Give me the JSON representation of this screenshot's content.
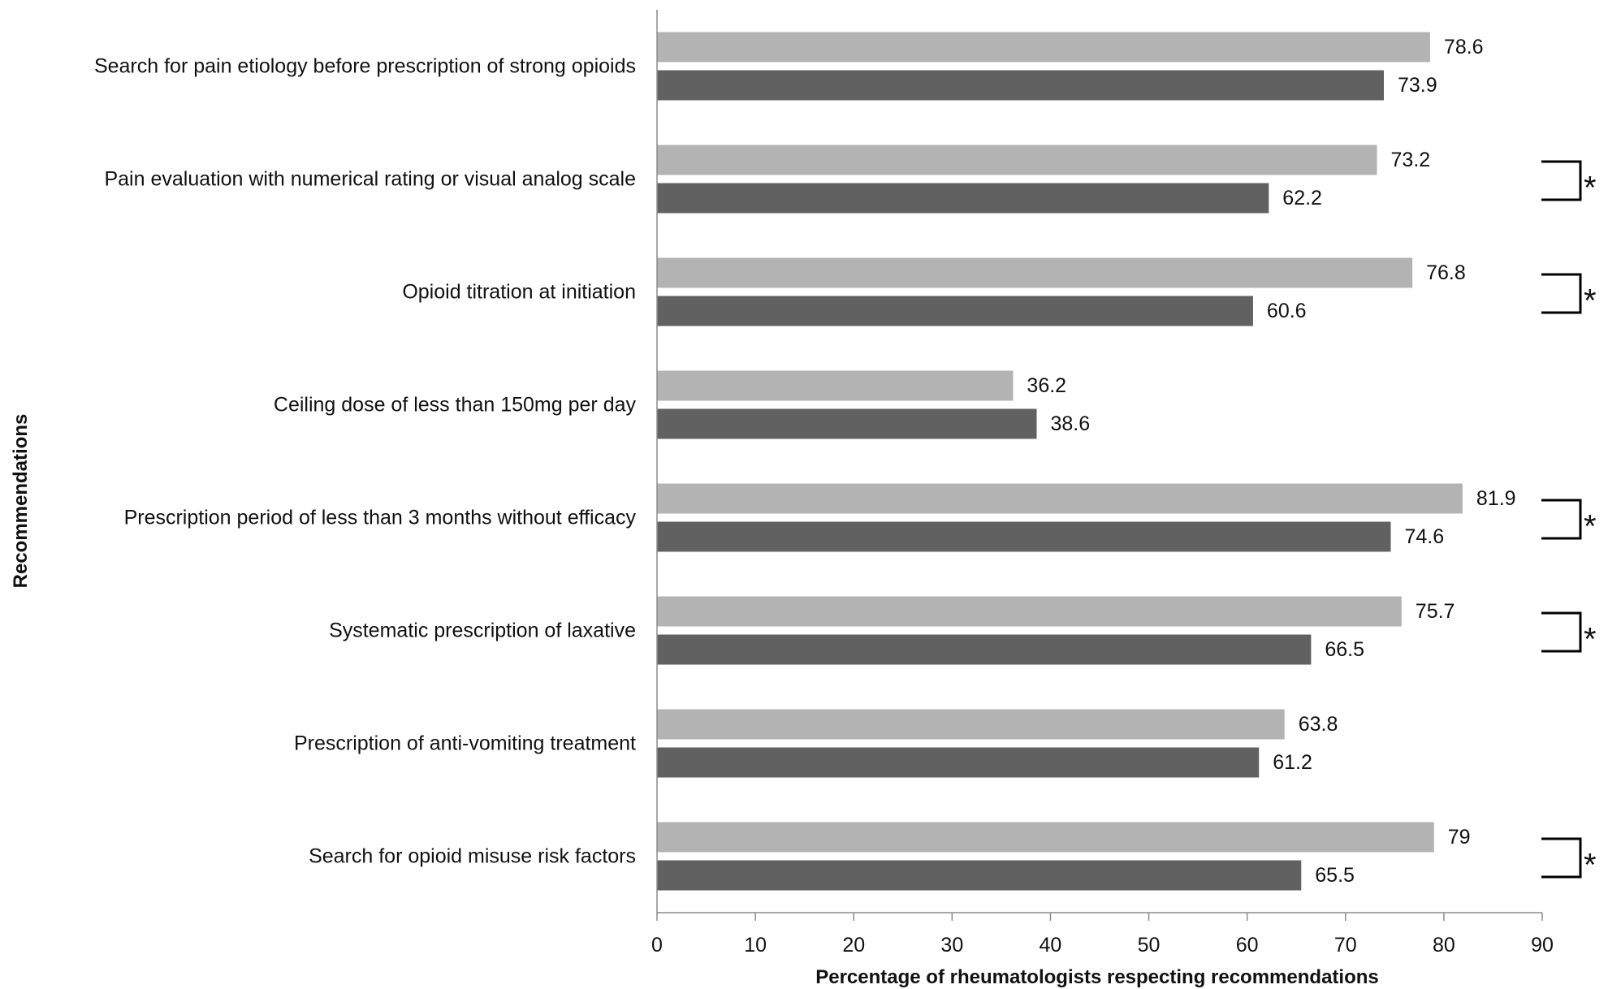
{
  "chart_data": {
    "type": "bar",
    "orientation": "horizontal",
    "title": "",
    "xlabel": "Percentage of rheumatologists respecting recommendations",
    "ylabel": "Recommendations",
    "xlim": [
      0,
      90
    ],
    "x_ticks": [
      0,
      10,
      20,
      30,
      40,
      50,
      60,
      70,
      80,
      90
    ],
    "grid": false,
    "legend": null,
    "categories": [
      "Search for pain etiology before prescription of strong opioids",
      "Pain evaluation with numerical rating or visual analog scale",
      "Opioid titration at initiation",
      "Ceiling dose of less than 150mg per day",
      "Prescription period of less than 3 months without efficacy",
      "Systematic prescription of laxative",
      "Prescription of anti-vomiting treatment",
      "Search for opioid misuse risk factors"
    ],
    "series": [
      {
        "color": "#b3b3b3",
        "values": [
          78.6,
          73.2,
          76.8,
          36.2,
          81.9,
          75.7,
          63.8,
          79
        ],
        "labels": [
          "78.6",
          "73.2",
          "76.8",
          "36.2",
          "81.9",
          "75.7",
          "63.8",
          "79"
        ]
      },
      {
        "color": "#616161",
        "values": [
          73.9,
          62.2,
          60.6,
          38.6,
          74.6,
          66.5,
          61.2,
          65.5
        ],
        "labels": [
          "73.9",
          "62.2",
          "60.6",
          "38.6",
          "74.6",
          "66.5",
          "61.2",
          "65.5"
        ]
      }
    ],
    "significance_marker": "*",
    "significant": [
      false,
      true,
      true,
      false,
      true,
      true,
      false,
      true
    ]
  }
}
